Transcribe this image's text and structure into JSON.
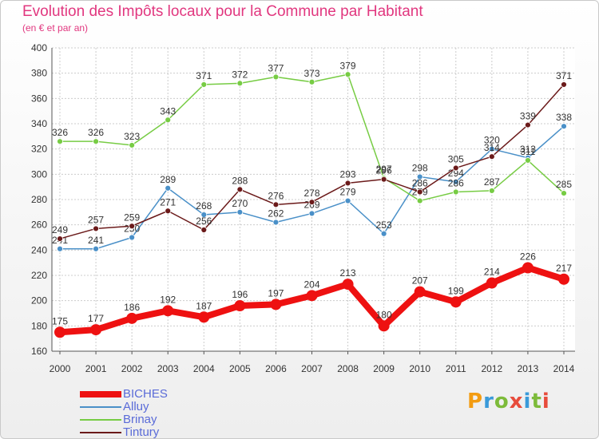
{
  "header": {
    "title": "Evolution des Impôts locaux pour la Commune par Habitant",
    "subtitle": "(en € et par an)"
  },
  "logo": {
    "text": "Proxiti"
  },
  "chart_data": {
    "type": "line",
    "title": "Evolution des Impôts locaux pour la Commune par Habitant",
    "subtitle": "(en € et par an)",
    "xlabel": "",
    "ylabel": "",
    "x": [
      "2000",
      "2001",
      "2002",
      "2003",
      "2004",
      "2005",
      "2006",
      "2007",
      "2008",
      "2009",
      "2010",
      "2011",
      "2012",
      "2013",
      "2014"
    ],
    "ylim": [
      160,
      400
    ],
    "yticks": [
      160,
      180,
      200,
      220,
      240,
      260,
      280,
      300,
      320,
      340,
      360,
      380,
      400
    ],
    "grid": true,
    "legend_position": "bottom-left",
    "series": [
      {
        "name": "BICHES",
        "color": "#ee1111",
        "bold": true,
        "values": [
          175,
          177,
          186,
          192,
          187,
          196,
          197,
          204,
          213,
          180,
          207,
          199,
          214,
          226,
          217
        ]
      },
      {
        "name": "Alluy",
        "color": "#4a90c8",
        "values": [
          241,
          241,
          250,
          289,
          268,
          270,
          262,
          269,
          279,
          253,
          298,
          294,
          320,
          313,
          338
        ]
      },
      {
        "name": "Brinay",
        "color": "#77cc44",
        "values": [
          326,
          326,
          323,
          343,
          371,
          372,
          377,
          373,
          379,
          297,
          279,
          286,
          287,
          311,
          285
        ]
      },
      {
        "name": "Tintury",
        "color": "#6b1a1a",
        "values": [
          249,
          257,
          259,
          271,
          256,
          288,
          276,
          278,
          293,
          296,
          286,
          305,
          314,
          339,
          371
        ]
      }
    ]
  }
}
